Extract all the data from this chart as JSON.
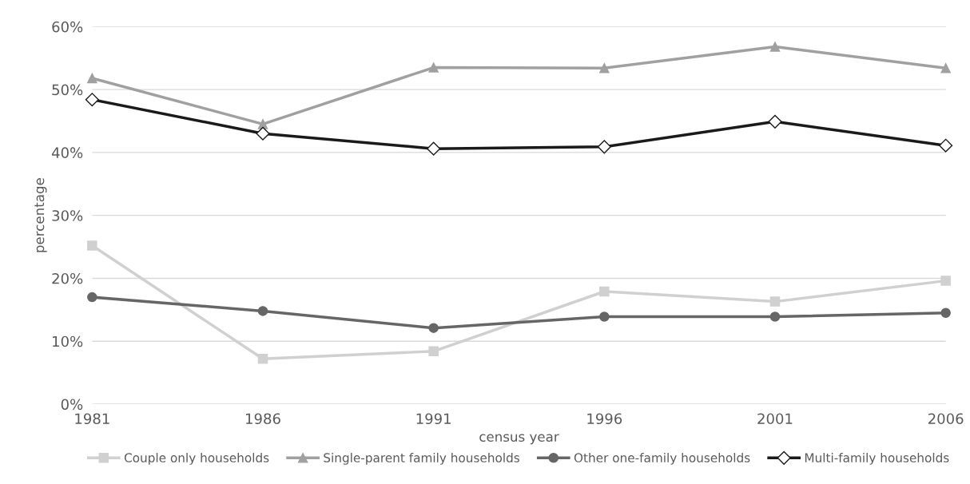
{
  "chart_data": {
    "type": "line",
    "xlabel": "census year",
    "ylabel": "percentage",
    "x": [
      1981,
      1986,
      1991,
      1996,
      2001,
      2006
    ],
    "xlim": [
      1981,
      2006
    ],
    "xticks": [
      1981,
      1986,
      1991,
      1996,
      2001,
      2006
    ],
    "ylim": [
      0,
      60
    ],
    "yticks": [
      {
        "value": 0,
        "label": "0%"
      },
      {
        "value": 10,
        "label": "10%"
      },
      {
        "value": 20,
        "label": "20%"
      },
      {
        "value": 30,
        "label": "30%"
      },
      {
        "value": 40,
        "label": "40%"
      },
      {
        "value": 50,
        "label": "50%"
      },
      {
        "value": 60,
        "label": "60%"
      }
    ],
    "grid": "y",
    "legend": "bottom",
    "line_style": "solid",
    "series": [
      {
        "name": "Couple only households",
        "color": "#d0d0d0",
        "marker": "square",
        "values": [
          25.2,
          7.2,
          8.4,
          17.9,
          16.3,
          19.6
        ]
      },
      {
        "name": "Single-parent family households",
        "color": "#a0a0a0",
        "marker": "triangle",
        "values": [
          51.8,
          44.5,
          53.5,
          53.4,
          56.8,
          53.4
        ]
      },
      {
        "name": "Other one-family households",
        "color": "#666666",
        "marker": "circle",
        "values": [
          17.0,
          14.8,
          12.1,
          13.9,
          13.9,
          14.5
        ]
      },
      {
        "name": "Multi-family households",
        "color": "#1a1a1a",
        "marker": "diamond",
        "values": [
          48.4,
          43.0,
          40.6,
          40.9,
          44.9,
          41.1
        ]
      }
    ]
  }
}
